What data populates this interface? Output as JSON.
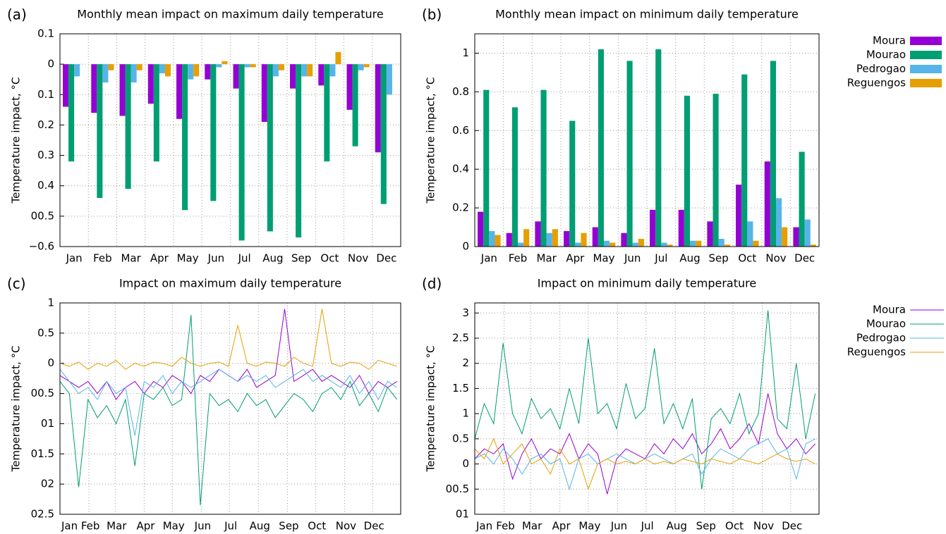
{
  "chart_data": [
    {
      "type": "bar",
      "panel_label": "(a)",
      "title": "Monthly mean impact on maximum daily temperature",
      "y_label": "Temperature impact, °C",
      "categories": [
        "Jan",
        "Feb",
        "Mar",
        "Apr",
        "May",
        "Jun",
        "Jul",
        "Aug",
        "Sep",
        "Oct",
        "Nov",
        "Dec"
      ],
      "ylim": [
        -0.6,
        0.1
      ],
      "yticks": [
        0.1,
        0,
        {
          "value": -0.1,
          "label": "0.1"
        },
        {
          "value": -0.2,
          "label": "0.2"
        },
        {
          "value": -0.3,
          "label": "0.3"
        },
        {
          "value": -0.4,
          "label": "0.4"
        },
        {
          "value": -0.5,
          "label": "00.5"
        },
        {
          "value": -0.6,
          "label": "−0.6"
        }
      ],
      "grid": true,
      "series": [
        {
          "color": "#9400d3",
          "values": [
            -0.14,
            -0.16,
            -0.17,
            -0.13,
            -0.18,
            -0.05,
            -0.08,
            -0.19,
            -0.08,
            -0.07,
            -0.15,
            -0.29
          ]
        },
        {
          "color": "#009e73",
          "values": [
            -0.32,
            -0.44,
            -0.41,
            -0.32,
            -0.48,
            -0.45,
            -0.58,
            -0.55,
            -0.57,
            -0.32,
            -0.27,
            -0.46
          ]
        },
        {
          "color": "#56b4e9",
          "values": [
            -0.04,
            -0.06,
            -0.06,
            -0.03,
            -0.05,
            -0.01,
            -0.01,
            -0.04,
            -0.04,
            -0.04,
            -0.02,
            -0.1
          ]
        },
        {
          "color": "#e69f00",
          "values": [
            0,
            -0.02,
            -0.02,
            -0.04,
            -0.04,
            0.01,
            -0.01,
            -0.02,
            -0.04,
            0.04,
            -0.01,
            0
          ]
        }
      ]
    },
    {
      "type": "bar",
      "panel_label": "(b)",
      "title": "Monthly mean impact on minimum daily temperature",
      "y_label": "Temperature impact, °C",
      "categories": [
        "Jan",
        "Feb",
        "Mar",
        "Apr",
        "May",
        "Jun",
        "Jul",
        "Aug",
        "Sep",
        "Oct",
        "Nov",
        "Dec"
      ],
      "ylim": [
        0,
        1.1
      ],
      "yticks": [
        0,
        0.2,
        0.4,
        0.6,
        0.8,
        1
      ],
      "grid": true,
      "legend": "outside-right",
      "series": [
        {
          "name": "Moura",
          "color": "#9400d3",
          "values": [
            0.18,
            0.07,
            0.13,
            0.08,
            0.1,
            0.07,
            0.19,
            0.19,
            0.13,
            0.32,
            0.44,
            0.1
          ]
        },
        {
          "name": "Mourao",
          "color": "#009e73",
          "values": [
            0.81,
            0.72,
            0.81,
            0.65,
            1.02,
            0.96,
            1.02,
            0.78,
            0.79,
            0.89,
            0.96,
            0.49
          ]
        },
        {
          "name": "Pedrogao",
          "color": "#56b4e9",
          "values": [
            0.08,
            0.02,
            0.07,
            0.02,
            0.03,
            0.02,
            0.02,
            0.03,
            0.04,
            0.13,
            0.25,
            0.14
          ]
        },
        {
          "name": "Reguengos",
          "color": "#e69f00",
          "values": [
            0.06,
            0.09,
            0.09,
            0.07,
            0.02,
            0.04,
            0.01,
            0.03,
            0.01,
            0.03,
            0.1,
            0.01
          ]
        }
      ]
    },
    {
      "type": "line",
      "panel_label": "(c)",
      "title": "Impact on maximum daily temperature",
      "y_label": "Temperature impact, °C",
      "x": [
        1,
        11,
        21,
        31,
        41,
        51,
        61,
        71,
        81,
        91,
        101,
        111,
        121,
        131,
        141,
        151,
        161,
        171,
        181,
        191,
        201,
        211,
        221,
        231,
        241,
        251,
        261,
        271,
        281,
        291,
        301,
        311,
        321,
        331,
        341,
        351,
        361
      ],
      "xlim": [
        1,
        365
      ],
      "xticks": [
        {
          "value": 1,
          "label": "Jan"
        },
        {
          "value": 32,
          "label": "Feb"
        },
        {
          "value": 60,
          "label": "Mar"
        },
        {
          "value": 91,
          "label": "Apr"
        },
        {
          "value": 121,
          "label": "May"
        },
        {
          "value": 152,
          "label": "Jun"
        },
        {
          "value": 182,
          "label": "Jul"
        },
        {
          "value": 213,
          "label": "Aug"
        },
        {
          "value": 244,
          "label": "Sep"
        },
        {
          "value": 274,
          "label": "Oct"
        },
        {
          "value": 305,
          "label": "Nov"
        },
        {
          "value": 335,
          "label": "Dec"
        }
      ],
      "ylim": [
        -2.5,
        1
      ],
      "yticks": [
        1,
        0.5,
        0,
        {
          "value": -0.5,
          "label": "00.5"
        },
        {
          "value": -1,
          "label": "01"
        },
        {
          "value": -1.5,
          "label": "01.5"
        },
        {
          "value": -2,
          "label": "02"
        },
        {
          "value": -2.5,
          "label": "02.5"
        }
      ],
      "grid": true,
      "series": [
        {
          "color": "#9400d3",
          "values": [
            -0.2,
            -0.3,
            -0.4,
            -0.3,
            -0.5,
            -0.3,
            -0.6,
            -0.4,
            -0.3,
            -0.5,
            -0.3,
            -0.4,
            -0.2,
            -0.3,
            -0.5,
            -0.2,
            -0.3,
            -0.1,
            -0.2,
            -0.3,
            -0.1,
            -0.4,
            -0.3,
            -0.2,
            0.9,
            -0.3,
            -0.2,
            -0.1,
            -0.3,
            -0.2,
            -0.3,
            -0.4,
            -0.2,
            -0.5,
            -0.3,
            -0.4,
            -0.3
          ]
        },
        {
          "color": "#009e73",
          "values": [
            -0.3,
            -0.5,
            -2.05,
            -0.6,
            -0.9,
            -0.7,
            -1.0,
            -0.6,
            -1.7,
            -0.5,
            -0.6,
            -0.4,
            -0.7,
            -0.6,
            0.8,
            -2.35,
            -0.5,
            -0.7,
            -0.6,
            -0.8,
            -0.5,
            -0.7,
            -0.6,
            -0.9,
            -0.7,
            -0.5,
            -0.6,
            -0.8,
            -0.5,
            -0.4,
            -0.6,
            -0.3,
            -0.7,
            -0.5,
            -0.8,
            -0.4,
            -0.6
          ]
        },
        {
          "color": "#56b4e9",
          "values": [
            -0.1,
            -0.3,
            -0.5,
            -0.4,
            -0.6,
            -0.3,
            -0.5,
            -0.4,
            -1.2,
            -0.3,
            -0.4,
            -0.2,
            -0.5,
            -0.3,
            -0.4,
            -0.3,
            -0.2,
            -0.1,
            -0.2,
            -0.3,
            -0.2,
            -0.3,
            -0.2,
            -0.4,
            -0.3,
            -0.2,
            -0.1,
            -0.3,
            -0.2,
            -0.3,
            -0.4,
            -0.2,
            -0.5,
            -0.3,
            -0.6,
            -0.3,
            -0.4
          ]
        },
        {
          "color": "#e69f00",
          "values": [
            0,
            -0.05,
            0.02,
            -0.1,
            0,
            -0.05,
            0.05,
            -0.1,
            0,
            -0.05,
            0.02,
            0,
            -0.05,
            0.1,
            0,
            -0.05,
            0,
            0.02,
            -0.05,
            0.63,
            0,
            -0.05,
            0.02,
            0,
            -0.05,
            0.1,
            0,
            -0.05,
            0.9,
            0,
            -0.05,
            0.02,
            0,
            -0.1,
            0.05,
            0,
            -0.05
          ]
        }
      ]
    },
    {
      "type": "line",
      "panel_label": "(d)",
      "title": "Impact on minimum daily temperature",
      "y_label": "Temperature impact, °C",
      "x": [
        1,
        11,
        21,
        31,
        41,
        51,
        61,
        71,
        81,
        91,
        101,
        111,
        121,
        131,
        141,
        151,
        161,
        171,
        181,
        191,
        201,
        211,
        221,
        231,
        241,
        251,
        261,
        271,
        281,
        291,
        301,
        311,
        321,
        331,
        341,
        351,
        361
      ],
      "xlim": [
        1,
        365
      ],
      "xticks": [
        {
          "value": 1,
          "label": "Jan"
        },
        {
          "value": 32,
          "label": "Feb"
        },
        {
          "value": 60,
          "label": "Mar"
        },
        {
          "value": 91,
          "label": "Apr"
        },
        {
          "value": 121,
          "label": "May"
        },
        {
          "value": 152,
          "label": "Jun"
        },
        {
          "value": 182,
          "label": "Jul"
        },
        {
          "value": 213,
          "label": "Aug"
        },
        {
          "value": 244,
          "label": "Sep"
        },
        {
          "value": 274,
          "label": "Oct"
        },
        {
          "value": 305,
          "label": "Nov"
        },
        {
          "value": 335,
          "label": "Dec"
        }
      ],
      "ylim": [
        -1,
        3.2
      ],
      "yticks": [
        3,
        2.5,
        2,
        1.5,
        1,
        0.5,
        0,
        {
          "value": -0.5,
          "label": "00.5"
        },
        {
          "value": -1,
          "label": "01"
        }
      ],
      "grid": true,
      "legend": "outside-right",
      "series": [
        {
          "name": "Moura",
          "color": "#9400d3",
          "values": [
            0.1,
            0.3,
            0.2,
            0.4,
            -0.3,
            0.2,
            0.5,
            0.1,
            0.3,
            0.2,
            0.6,
            0.1,
            0.4,
            0.2,
            -0.6,
            0.1,
            0.3,
            0.2,
            0.1,
            0.4,
            0.2,
            0.5,
            0.3,
            0.6,
            0.2,
            0.4,
            0.7,
            0.3,
            0.5,
            0.8,
            0.4,
            1.4,
            0.6,
            0.3,
            0.5,
            0.2,
            0.4
          ]
        },
        {
          "name": "Mourao",
          "color": "#009e73",
          "values": [
            0.5,
            1.2,
            0.8,
            2.4,
            1.0,
            0.6,
            1.3,
            0.9,
            1.1,
            0.7,
            1.5,
            0.8,
            2.5,
            1.0,
            1.2,
            0.7,
            1.6,
            0.9,
            1.1,
            2.3,
            0.8,
            1.2,
            0.7,
            1.3,
            -0.5,
            0.9,
            1.1,
            0.8,
            1.4,
            0.6,
            1.0,
            3.05,
            0.9,
            0.7,
            2.0,
            0.5,
            1.4
          ]
        },
        {
          "name": "Pedrogao",
          "color": "#56b4e9",
          "values": [
            0.1,
            0.2,
            0,
            0.3,
            0.1,
            -0.2,
            0.1,
            0.2,
            0,
            0.1,
            -0.5,
            0.1,
            0.2,
            0,
            0.1,
            0.2,
            0.1,
            0,
            0.1,
            0.2,
            0.1,
            0,
            0.1,
            0.2,
            -0.2,
            0.1,
            0.3,
            0.2,
            0.1,
            0.3,
            0.4,
            0.5,
            0.2,
            0.3,
            -0.3,
            0.4,
            0.5
          ]
        },
        {
          "name": "Reguengos",
          "color": "#e69f00",
          "values": [
            0.3,
            0.1,
            0.5,
            0,
            0.2,
            0.4,
            0,
            0.1,
            -0.2,
            0.3,
            0,
            0.1,
            -0.5,
            0,
            0.1,
            0,
            0.05,
            0,
            0.1,
            0,
            0.05,
            0,
            0.1,
            0.05,
            0,
            0.1,
            0.05,
            0,
            0.1,
            0.05,
            0,
            0.1,
            0.2,
            0.1,
            0.05,
            0.1,
            0
          ]
        }
      ]
    }
  ]
}
